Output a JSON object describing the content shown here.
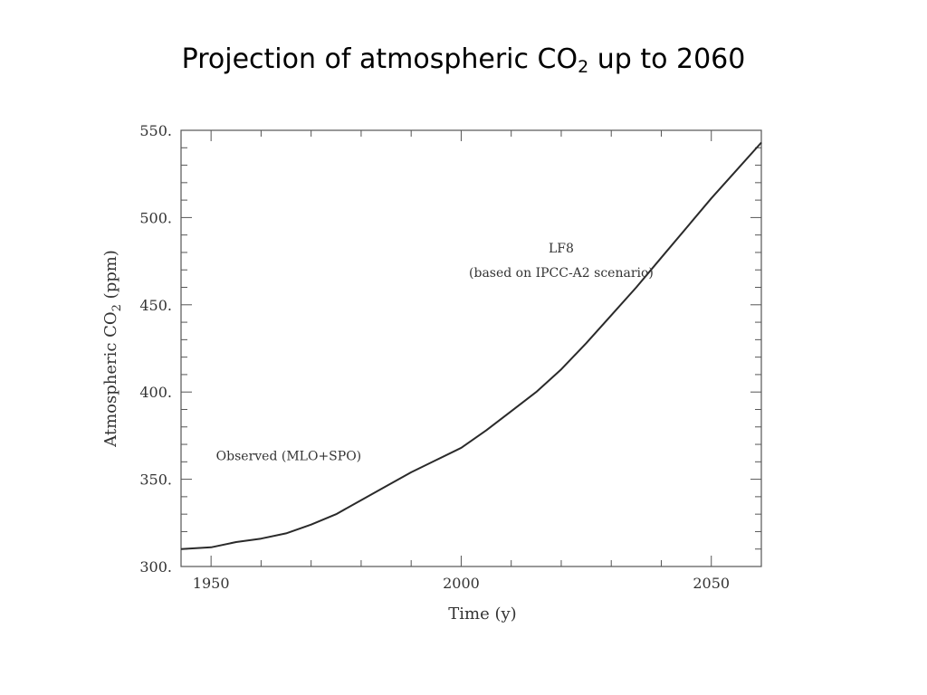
{
  "slide": {
    "title": "Projection of atmospheric CO",
    "title_sub": "2",
    "title_end": " up to 2060"
  },
  "chart_data": {
    "type": "line",
    "title": "",
    "xlabel": "Time (y)",
    "ylabel": "Atmospheric CO",
    "ylabel_sub": "2",
    "ylabel_end": " (ppm)",
    "xlim": [
      1944,
      2060
    ],
    "ylim": [
      300,
      550
    ],
    "x_ticks": [
      1950,
      2000,
      2050
    ],
    "y_ticks": [
      300,
      350,
      400,
      450,
      500,
      550
    ],
    "x_tick_labels": [
      "1950",
      "2000",
      "2050"
    ],
    "y_tick_labels": [
      "300.",
      "350.",
      "400.",
      "450.",
      "500.",
      "550."
    ],
    "grid": false,
    "annotations": [
      {
        "text": "Observed (MLO+SPO)",
        "x": 1951,
        "y": 361
      },
      {
        "text": "LF8",
        "x": 2020,
        "y": 480
      },
      {
        "text": "(based on IPCC-A2 scenario)",
        "x": 2020,
        "y": 466
      }
    ],
    "series": [
      {
        "x": [
          1944,
          1950,
          1955,
          1960,
          1965,
          1970,
          1975,
          1980,
          1985,
          1990,
          1995,
          2000,
          2005,
          2010,
          2015,
          2020,
          2025,
          2030,
          2035,
          2040,
          2045,
          2050,
          2055,
          2060
        ],
        "values": [
          310,
          311,
          314,
          316,
          319,
          324,
          330,
          338,
          346,
          354,
          361,
          368,
          378,
          389,
          400,
          413,
          428,
          444,
          460,
          477,
          494,
          511,
          527,
          543
        ]
      }
    ]
  }
}
